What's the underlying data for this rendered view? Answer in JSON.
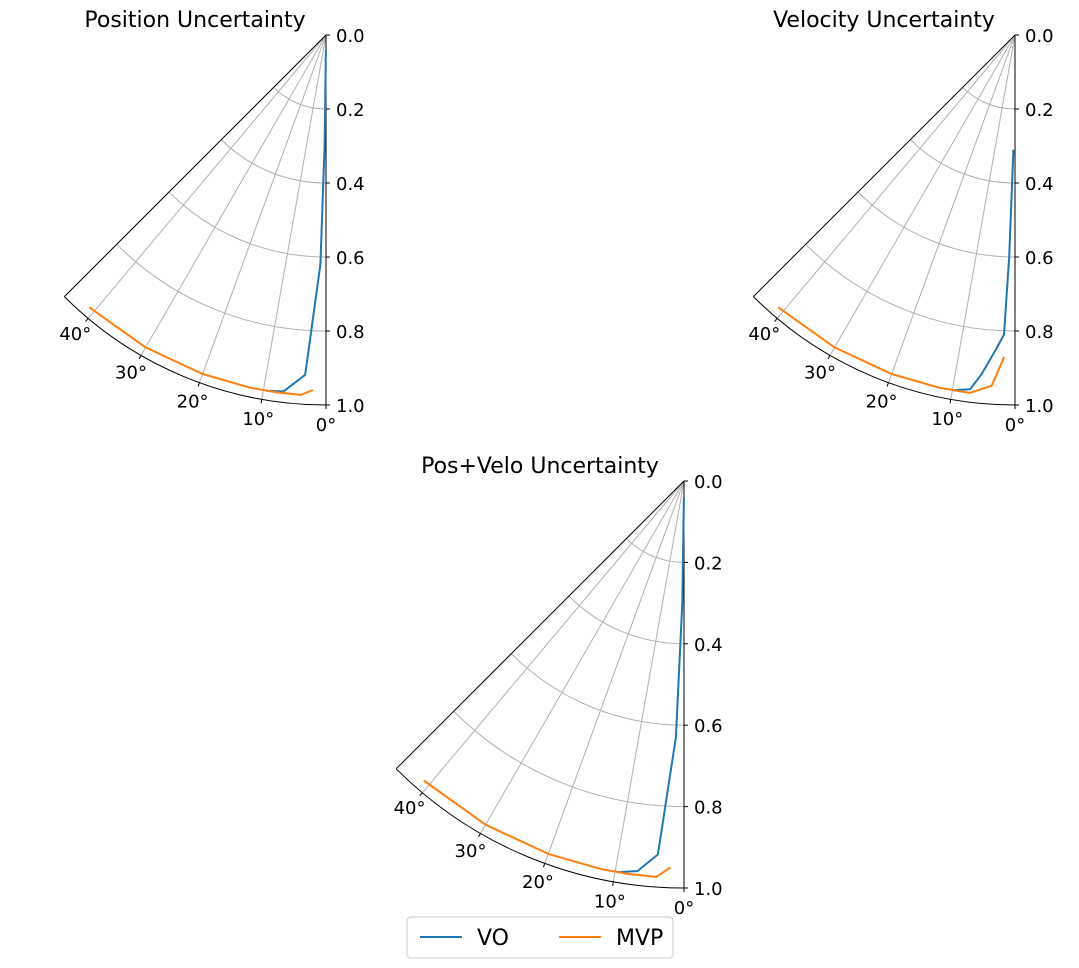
{
  "chart_data": [
    {
      "type": "line",
      "projection": "polar-sector",
      "title": "Position Uncertainty",
      "theta_range_deg": [
        0,
        45
      ],
      "r_range": [
        0,
        1.0
      ],
      "r_inverted": true,
      "r_ticks": [
        "0.0",
        "0.2",
        "0.4",
        "0.6",
        "0.8",
        "1.0"
      ],
      "theta_ticks": [
        "0°",
        "10°",
        "20°",
        "30°",
        "40°"
      ],
      "grid": true,
      "series": [
        {
          "name": "VO",
          "color": "#1f77b4",
          "points": [
            [
              0.3,
              0.04
            ],
            [
              0.7,
              0.3
            ],
            [
              1.4,
              0.62
            ],
            [
              3.5,
              0.92
            ],
            [
              6.8,
              0.97
            ],
            [
              9.6,
              0.975
            ]
          ]
        },
        {
          "name": "MVP",
          "color": "#ff7f0e",
          "points": [
            [
              2.1,
              0.96
            ],
            [
              4.0,
              0.975
            ],
            [
              8.0,
              0.975
            ],
            [
              12,
              0.975
            ],
            [
              20,
              0.975
            ],
            [
              30,
              0.975
            ],
            [
              41,
              0.975
            ]
          ]
        }
      ]
    },
    {
      "type": "line",
      "projection": "polar-sector",
      "title": "Velocity Uncertainty",
      "theta_range_deg": [
        0,
        45
      ],
      "r_range": [
        0,
        1.0
      ],
      "r_inverted": true,
      "r_ticks": [
        "0.0",
        "0.2",
        "0.4",
        "0.6",
        "0.8",
        "1.0"
      ],
      "theta_ticks": [
        "0°",
        "10°",
        "20°",
        "30°",
        "40°"
      ],
      "grid": true,
      "series": [
        {
          "name": "VO",
          "color": "#1f77b4",
          "points": [
            [
              0.8,
              0.31
            ],
            [
              1.5,
              0.6
            ],
            [
              2.1,
              0.81
            ],
            [
              3.4,
              0.85
            ],
            [
              5.6,
              0.92
            ],
            [
              7.2,
              0.965
            ],
            [
              10,
              0.975
            ]
          ]
        },
        {
          "name": "MVP",
          "color": "#ff7f0e",
          "points": [
            [
              1.9,
              0.87
            ],
            [
              3.8,
              0.95
            ],
            [
              7.2,
              0.975
            ],
            [
              12,
              0.975
            ],
            [
              20,
              0.975
            ],
            [
              30,
              0.975
            ],
            [
              41,
              0.975
            ]
          ]
        }
      ]
    },
    {
      "type": "line",
      "projection": "polar-sector",
      "title": "Pos+Velo Uncertainty",
      "theta_range_deg": [
        0,
        45
      ],
      "r_range": [
        0,
        1.0
      ],
      "r_inverted": true,
      "r_ticks": [
        "0.0",
        "0.2",
        "0.4",
        "0.6",
        "0.8",
        "1.0"
      ],
      "theta_ticks": [
        "0°",
        "10°",
        "20°",
        "30°",
        "40°"
      ],
      "grid": true,
      "series": [
        {
          "name": "VO",
          "color": "#1f77b4",
          "points": [
            [
              0.3,
              0.04
            ],
            [
              0.8,
              0.3
            ],
            [
              1.8,
              0.63
            ],
            [
              4.0,
              0.92
            ],
            [
              6.8,
              0.965
            ],
            [
              9.6,
              0.975
            ]
          ]
        },
        {
          "name": "MVP",
          "color": "#ff7f0e",
          "points": [
            [
              2.0,
              0.95
            ],
            [
              4.0,
              0.975
            ],
            [
              8.0,
              0.975
            ],
            [
              12,
              0.975
            ],
            [
              20,
              0.975
            ],
            [
              30,
              0.975
            ],
            [
              41,
              0.975
            ]
          ]
        }
      ]
    }
  ],
  "legend": {
    "placement": "bottom-center",
    "entries": [
      {
        "label": "VO",
        "color": "#1f77b4"
      },
      {
        "label": "MVP",
        "color": "#ff7f0e"
      }
    ]
  },
  "colors": {
    "axis": "#000000",
    "grid": "#b0b0b0"
  }
}
